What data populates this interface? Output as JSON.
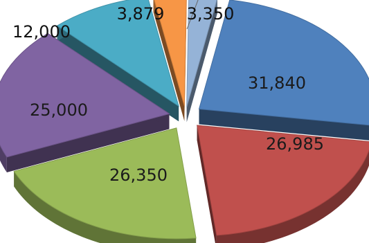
{
  "chart_data": {
    "type": "pie",
    "style": "3d-exploded",
    "values": [
      31840,
      26985,
      26350,
      25000,
      12000,
      3879,
      3350
    ],
    "data_labels": [
      "31,840",
      "26,985",
      "26,350",
      "25,000",
      "12,000",
      "3,879",
      "3,350"
    ],
    "colors": [
      "#4f81bd",
      "#c0504d",
      "#9bbb59",
      "#8064a2",
      "#4bacc6",
      "#f79646",
      "#95b3d7"
    ],
    "legend": "none"
  }
}
